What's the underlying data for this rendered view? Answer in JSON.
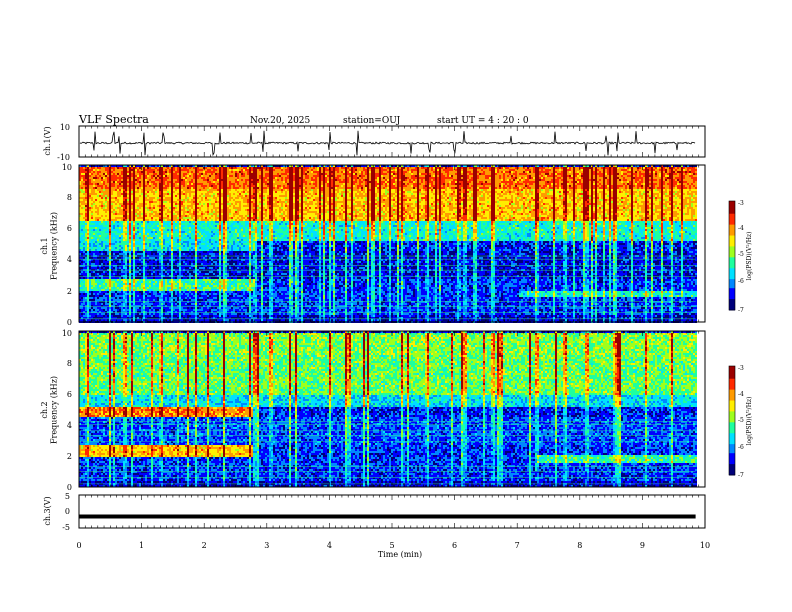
{
  "header": {
    "title": "VLF Spectra",
    "date": "Nov.20, 2025",
    "station": "station=OUJ",
    "start": "start  UT =   4 : 20 : 0"
  },
  "colors": {
    "spectrogram_colormap": [
      "#00007a",
      "#0000ff",
      "#0088ff",
      "#00e0ff",
      "#1eff9e",
      "#9eff1e",
      "#ffee00",
      "#ff9a00",
      "#ff2a00",
      "#9b0000"
    ],
    "line": "#000000"
  },
  "chart_data": [
    {
      "type": "line",
      "name": "ch1-waveform",
      "ylabel": "ch.1(V)",
      "ylim": [
        -10,
        10
      ],
      "yticks": [
        "10",
        "-10"
      ],
      "baseline": -1,
      "noise_amplitude": 0.6,
      "impulse_times_min": [
        0.25,
        0.55,
        0.65,
        1.05,
        1.35,
        2.15,
        2.25,
        2.75,
        2.95,
        3.5,
        4.0,
        4.45,
        5.3,
        5.6,
        6.0,
        6.15,
        6.9,
        7.6,
        8.1,
        8.42,
        8.45,
        8.6,
        8.9,
        9.2,
        9.55
      ],
      "xlim": [
        0,
        10
      ]
    },
    {
      "type": "heatmap",
      "name": "ch1-spectrogram",
      "ylabel": "ch.1\nFrequency (kHz)",
      "ylim": [
        0,
        10
      ],
      "yticks": [
        "0",
        "2",
        "4",
        "6",
        "8",
        "10"
      ],
      "xlim": [
        0,
        9.85
      ],
      "colorbar": {
        "label": "log(PSD)(V²/Hz)",
        "range": [
          -7,
          -3
        ],
        "ticks": [
          "-3",
          "-4",
          "-5",
          "-6",
          "-7"
        ]
      },
      "bands_khz": [
        {
          "from": 0,
          "to": 0.5,
          "level": -6.6
        },
        {
          "from": 0.5,
          "to": 2.0,
          "level": -6.3
        },
        {
          "from": 2.0,
          "to": 2.8,
          "level": -5.2,
          "until_min": 2.8,
          "after_level": -6.3
        },
        {
          "from": 2.8,
          "to": 4.6,
          "level": -6.5
        },
        {
          "from": 4.6,
          "to": 5.2,
          "level": -5.6,
          "until_min": 2.8,
          "after_level": -6.4
        },
        {
          "from": 5.2,
          "to": 6.5,
          "level": -5.4
        },
        {
          "from": 6.5,
          "to": 8.5,
          "level": -4.2
        },
        {
          "from": 8.5,
          "to": 10,
          "level": -3.8
        }
      ],
      "late_band": {
        "from": 1.6,
        "to": 2.1,
        "start_min": 7.0,
        "level": -5.4
      },
      "sferic_times_min": [
        0.12,
        0.48,
        0.72,
        1.3,
        1.85,
        2.3,
        2.72,
        2.8,
        3.05,
        3.45,
        4.0,
        4.25,
        4.6,
        5.15,
        5.55,
        6.05,
        6.15,
        6.6,
        7.3,
        7.75,
        8.1,
        8.55,
        9.05,
        9.45
      ]
    },
    {
      "type": "heatmap",
      "name": "ch2-spectrogram",
      "ylabel": "ch.2\nFrequency (kHz)",
      "ylim": [
        0,
        10
      ],
      "yticks": [
        "0",
        "2",
        "4",
        "6",
        "8",
        "10"
      ],
      "xlim": [
        0,
        9.85
      ],
      "colorbar": {
        "label": "log(PSD)(V²/Hz)",
        "range": [
          -7,
          -3
        ],
        "ticks": [
          "-3",
          "-4",
          "-5",
          "-6",
          "-7"
        ]
      },
      "bands_khz": [
        {
          "from": 0,
          "to": 0.5,
          "level": -6.6
        },
        {
          "from": 0.5,
          "to": 2.0,
          "level": -6.3
        },
        {
          "from": 2.0,
          "to": 2.8,
          "level": -4.2,
          "until_min": 2.75,
          "after_level": -6.3
        },
        {
          "from": 2.8,
          "to": 4.6,
          "level": -6.2
        },
        {
          "from": 4.6,
          "to": 5.2,
          "level": -3.9,
          "until_min": 2.75,
          "after_level": -6.4
        },
        {
          "from": 5.2,
          "to": 6.0,
          "level": -5.6
        },
        {
          "from": 6.0,
          "to": 8.5,
          "level": -5.0
        },
        {
          "from": 8.5,
          "to": 10,
          "level": -4.9
        }
      ],
      "late_band": {
        "from": 1.6,
        "to": 2.1,
        "start_min": 7.3,
        "level": -5.2
      },
      "sferic_times_min": [
        0.12,
        0.48,
        0.72,
        1.3,
        1.85,
        2.3,
        2.8,
        2.83,
        3.05,
        3.45,
        4.0,
        4.25,
        4.6,
        5.15,
        5.55,
        6.1,
        6.15,
        6.6,
        7.3,
        7.75,
        8.1,
        8.55,
        9.05,
        9.45
      ]
    },
    {
      "type": "line",
      "name": "ch3-waveform",
      "ylabel": "ch.3(V)",
      "ylim": [
        -5,
        5
      ],
      "yticks": [
        "5",
        "0",
        "-5"
      ],
      "baseline": -1.5,
      "xlim": [
        0,
        9.85
      ]
    }
  ],
  "xaxis": {
    "label": "Time (min)",
    "range": [
      0,
      10
    ],
    "ticks": [
      "0",
      "1",
      "2",
      "3",
      "4",
      "5",
      "6",
      "7",
      "8",
      "9",
      "10"
    ]
  }
}
